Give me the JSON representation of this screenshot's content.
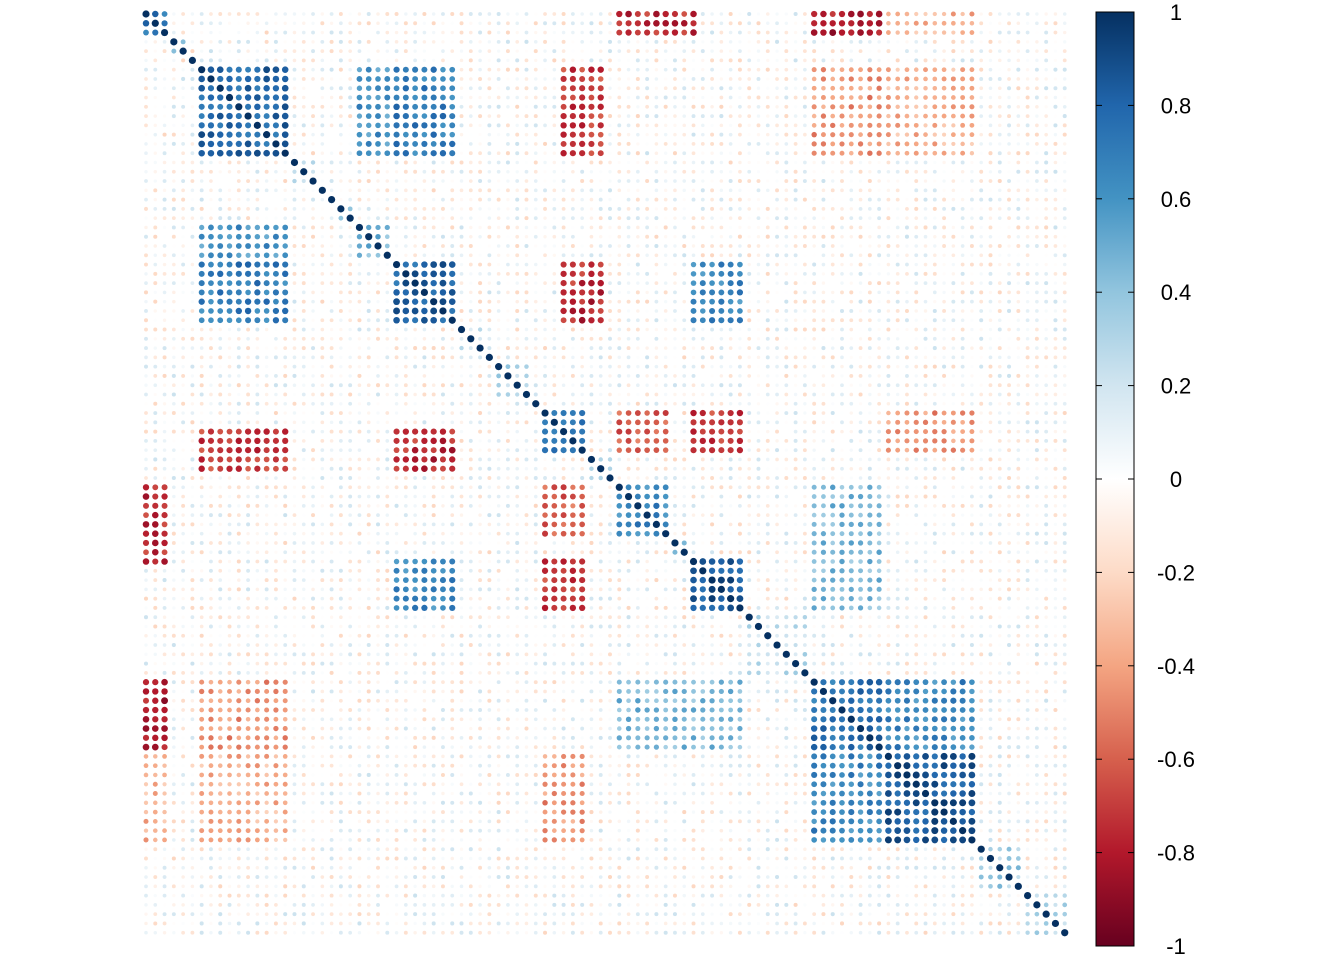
{
  "chart_data": {
    "type": "heatmap",
    "subtype": "correlation-matrix-circles",
    "n_variables": 100,
    "value_range": [
      -1,
      1
    ],
    "diagonal_value": 1,
    "title": "",
    "xlabel": "",
    "ylabel": "",
    "row_labels_shown": false,
    "col_labels_shown": false,
    "grid": false,
    "colorbar": {
      "position": "right",
      "ticks": [
        1,
        0.8,
        0.6,
        0.4,
        0.2,
        0,
        -0.2,
        -0.4,
        -0.6,
        -0.8,
        -1
      ],
      "tick_labels": [
        "1",
        "0.8",
        "0.6",
        "0.4",
        "0.2",
        "0",
        "-0.2",
        "-0.4",
        "-0.6",
        "-0.8",
        "-1"
      ],
      "colors": [
        "#67001F",
        "#B2182B",
        "#D6604D",
        "#F4A582",
        "#FDDBC7",
        "#FFFFFF",
        "#D1E5F0",
        "#92C5DE",
        "#4393C3",
        "#2166AC",
        "#053061"
      ]
    },
    "variable_groups": [
      {
        "range": [
          0,
          3
        ],
        "within_corr": 0.75
      },
      {
        "range": [
          3,
          5
        ],
        "within_corr": 0.45
      },
      {
        "range": [
          6,
          16
        ],
        "within_corr": 0.8
      },
      {
        "range": [
          16,
          19
        ],
        "within_corr": 0.3
      },
      {
        "range": [
          21,
          23
        ],
        "within_corr": 0.4
      },
      {
        "range": [
          23,
          27
        ],
        "within_corr": 0.45
      },
      {
        "range": [
          27,
          34
        ],
        "within_corr": 0.8
      },
      {
        "range": [
          34,
          38
        ],
        "within_corr": 0.25
      },
      {
        "range": [
          38,
          42
        ],
        "within_corr": 0.3
      },
      {
        "range": [
          43,
          48
        ],
        "within_corr": 0.75
      },
      {
        "range": [
          48,
          51
        ],
        "within_corr": 0.35
      },
      {
        "range": [
          51,
          57
        ],
        "within_corr": 0.65
      },
      {
        "range": [
          57,
          59
        ],
        "within_corr": 0.4
      },
      {
        "range": [
          59,
          65
        ],
        "within_corr": 0.85
      },
      {
        "range": [
          65,
          72
        ],
        "within_corr": 0.25
      },
      {
        "range": [
          72,
          80
        ],
        "within_corr": 0.75
      },
      {
        "range": [
          80,
          90
        ],
        "within_corr": 0.85
      },
      {
        "range": [
          90,
          95
        ],
        "within_corr": 0.35
      },
      {
        "range": [
          95,
          100
        ],
        "within_corr": 0.3
      }
    ],
    "between_group_corr": [
      {
        "groups": [
          [
            0,
            3
          ],
          [
            51,
            60
          ]
        ],
        "value": -0.75
      },
      {
        "groups": [
          [
            0,
            3
          ],
          [
            72,
            80
          ]
        ],
        "value": -0.8
      },
      {
        "groups": [
          [
            6,
            16
          ],
          [
            27,
            34
          ]
        ],
        "value": 0.7
      },
      {
        "groups": [
          [
            6,
            16
          ],
          [
            45,
            50
          ]
        ],
        "value": -0.7
      },
      {
        "groups": [
          [
            6,
            16
          ],
          [
            72,
            80
          ]
        ],
        "value": -0.45
      },
      {
        "groups": [
          [
            6,
            16
          ],
          [
            23,
            27
          ]
        ],
        "value": 0.6
      },
      {
        "groups": [
          [
            27,
            34
          ],
          [
            45,
            50
          ]
        ],
        "value": -0.75
      },
      {
        "groups": [
          [
            27,
            34
          ],
          [
            59,
            65
          ]
        ],
        "value": 0.65
      },
      {
        "groups": [
          [
            43,
            48
          ],
          [
            51,
            57
          ]
        ],
        "value": -0.6
      },
      {
        "groups": [
          [
            43,
            48
          ],
          [
            59,
            65
          ]
        ],
        "value": -0.7
      },
      {
        "groups": [
          [
            51,
            65
          ],
          [
            72,
            80
          ]
        ],
        "value": 0.45
      },
      {
        "groups": [
          [
            72,
            80
          ],
          [
            80,
            90
          ]
        ],
        "value": 0.65
      },
      {
        "groups": [
          [
            0,
            3
          ],
          [
            80,
            90
          ]
        ],
        "value": -0.35
      },
      {
        "groups": [
          [
            43,
            48
          ],
          [
            80,
            90
          ]
        ],
        "value": -0.45
      },
      {
        "groups": [
          [
            6,
            16
          ],
          [
            80,
            90
          ]
        ],
        "value": -0.35
      }
    ]
  }
}
